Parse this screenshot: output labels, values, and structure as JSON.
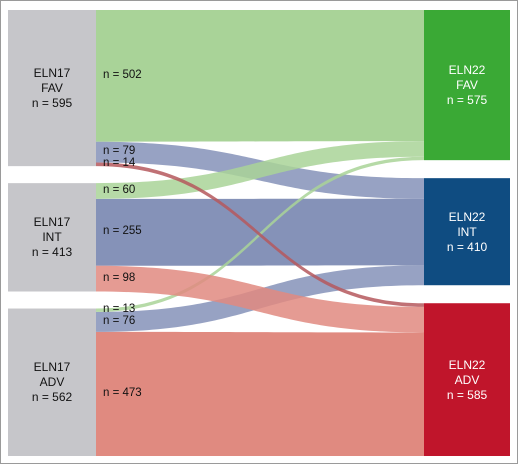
{
  "diagram": {
    "left_nodes": [
      {
        "id": "fav",
        "line1": "ELN17",
        "line2": "FAV",
        "line3": "n = 595"
      },
      {
        "id": "int",
        "line1": "ELN17",
        "line2": "INT",
        "line3": "n = 413"
      },
      {
        "id": "adv",
        "line1": "ELN17",
        "line2": "ADV",
        "line3": "n = 562"
      }
    ],
    "right_nodes": [
      {
        "id": "fav",
        "line1": "ELN22",
        "line2": "FAV",
        "line3": "n = 575",
        "color": "#3aa935"
      },
      {
        "id": "int",
        "line1": "ELN22",
        "line2": "INT",
        "line3": "n = 410",
        "color": "#0f4c81"
      },
      {
        "id": "adv",
        "line1": "ELN22",
        "line2": "ADV",
        "line3": "n = 585",
        "color": "#c0152b"
      }
    ],
    "flows": [
      {
        "from": "fav",
        "to": "fav",
        "value": 502,
        "label": "n = 502",
        "color": "#a9d398"
      },
      {
        "from": "fav",
        "to": "int",
        "value": 79,
        "label": "n = 79",
        "color": "#8592b8"
      },
      {
        "from": "fav",
        "to": "adv",
        "value": 14,
        "label": "n = 14",
        "color": "#b5585d"
      },
      {
        "from": "int",
        "to": "fav",
        "value": 60,
        "label": "n = 60",
        "color": "#a9d398"
      },
      {
        "from": "int",
        "to": "int",
        "value": 255,
        "label": "n = 255",
        "color": "#8592b8"
      },
      {
        "from": "int",
        "to": "adv",
        "value": 98,
        "label": "n = 98",
        "color": "#e08a80"
      },
      {
        "from": "adv",
        "to": "fav",
        "value": 13,
        "label": "n = 13",
        "color": "#a9d398"
      },
      {
        "from": "adv",
        "to": "int",
        "value": 76,
        "label": "n = 76",
        "color": "#8592b8"
      },
      {
        "from": "adv",
        "to": "adv",
        "value": 473,
        "label": "n = 473",
        "color": "#e08a80"
      }
    ],
    "left_node_color": "#c6c6ca",
    "right_text_color": "#ffffff",
    "left_text_color": "#111111"
  }
}
